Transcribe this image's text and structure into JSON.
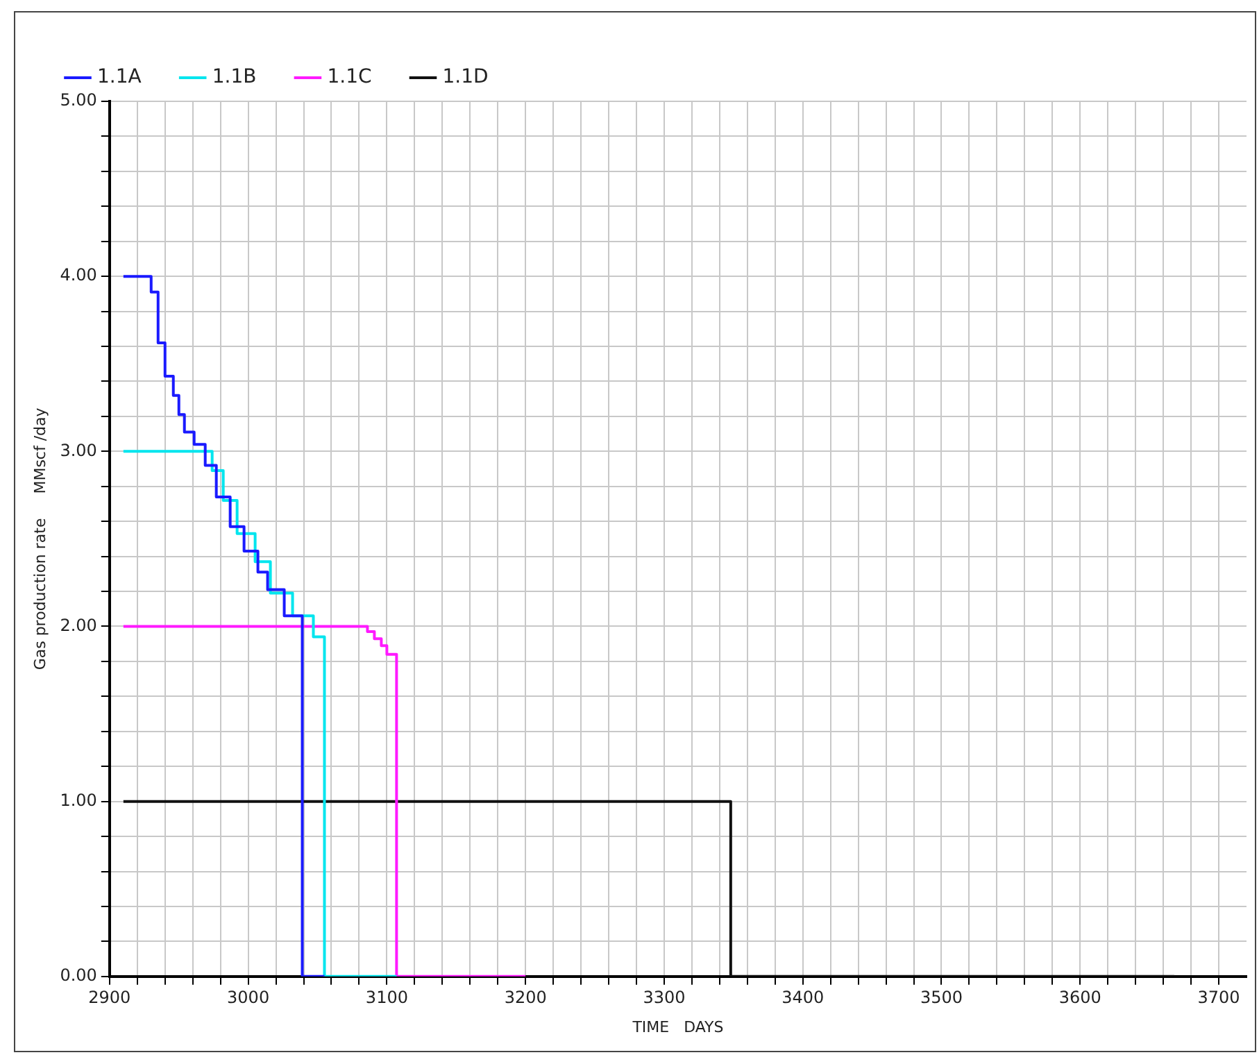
{
  "chart_data": {
    "type": "step",
    "xlabel": "TIME   DAYS",
    "ylabel": "Gas production rate     MMscf /day",
    "xlim": [
      2900,
      3720
    ],
    "xticks": [
      2900,
      {
        "value": 2920,
        "label": null
      },
      {
        "value": 2940,
        "label": null
      },
      {
        "value": 2960,
        "label": null
      },
      {
        "value": 2980,
        "label": null
      },
      3000,
      {
        "value": 3020,
        "label": null
      },
      {
        "value": 3040,
        "label": null
      },
      {
        "value": 3060,
        "label": null
      },
      {
        "value": 3080,
        "label": null
      },
      3100,
      {
        "value": 3120,
        "label": null
      },
      {
        "value": 3140,
        "label": null
      },
      {
        "value": 3160,
        "label": null
      },
      {
        "value": 3180,
        "label": null
      },
      3200,
      {
        "value": 3220,
        "label": null
      },
      {
        "value": 3240,
        "label": null
      },
      {
        "value": 3260,
        "label": null
      },
      {
        "value": 3280,
        "label": null
      },
      3300,
      {
        "value": 3320,
        "label": null
      },
      {
        "value": 3340,
        "label": null
      },
      {
        "value": 3360,
        "label": null
      },
      {
        "value": 3380,
        "label": null
      },
      3400,
      {
        "value": 3420,
        "label": null
      },
      {
        "value": 3440,
        "label": null
      },
      {
        "value": 3460,
        "label": null
      },
      {
        "value": 3480,
        "label": null
      },
      3500,
      {
        "value": 3520,
        "label": null
      },
      {
        "value": 3540,
        "label": null
      },
      {
        "value": 3560,
        "label": null
      },
      {
        "value": 3580,
        "label": null
      },
      3600,
      {
        "value": 3620,
        "label": null
      },
      {
        "value": 3640,
        "label": null
      },
      {
        "value": 3660,
        "label": null
      },
      {
        "value": 3680,
        "label": null
      },
      3700
    ],
    "ylim": [
      0,
      5
    ],
    "yticks": [
      {
        "value": 0,
        "label": "0.00"
      },
      {
        "value": 0.2,
        "label": null
      },
      {
        "value": 0.4,
        "label": null
      },
      {
        "value": 0.6,
        "label": null
      },
      {
        "value": 0.8,
        "label": null
      },
      {
        "value": 1,
        "label": "1.00"
      },
      {
        "value": 1.2,
        "label": null
      },
      {
        "value": 1.4,
        "label": null
      },
      {
        "value": 1.6,
        "label": null
      },
      {
        "value": 1.8,
        "label": null
      },
      {
        "value": 2,
        "label": "2.00"
      },
      {
        "value": 2.2,
        "label": null
      },
      {
        "value": 2.4,
        "label": null
      },
      {
        "value": 2.6,
        "label": null
      },
      {
        "value": 2.8,
        "label": null
      },
      {
        "value": 3,
        "label": "3.00"
      },
      {
        "value": 3.2,
        "label": null
      },
      {
        "value": 3.4,
        "label": null
      },
      {
        "value": 3.6,
        "label": null
      },
      {
        "value": 3.8,
        "label": null
      },
      {
        "value": 4,
        "label": "4.00"
      },
      {
        "value": 4.2,
        "label": null
      },
      {
        "value": 4.4,
        "label": null
      },
      {
        "value": 4.6,
        "label": null
      },
      {
        "value": 4.8,
        "label": null
      },
      {
        "value": 5,
        "label": "5.00"
      }
    ],
    "grid": true,
    "legend": "top left",
    "marker": "none",
    "line_style": "solid",
    "series": [
      {
        "name": "1.1A",
        "color": "#1a1aff",
        "x": [
          2910,
          2930,
          2935,
          2940,
          2946,
          2950,
          2954,
          2961,
          2969,
          2977,
          2987,
          2997,
          3007,
          3014,
          3026,
          3039,
          3055
        ],
        "values": [
          4.0,
          3.91,
          3.62,
          3.43,
          3.32,
          3.21,
          3.11,
          3.04,
          2.92,
          2.74,
          2.57,
          2.43,
          2.31,
          2.21,
          2.06,
          0,
          0
        ]
      },
      {
        "name": "1.1B",
        "color": "#00e5ee",
        "x": [
          2910,
          2974,
          2982,
          2992,
          3005,
          3016,
          3032,
          3047,
          3055,
          3107
        ],
        "values": [
          3.0,
          2.89,
          2.72,
          2.53,
          2.37,
          2.19,
          2.06,
          1.94,
          0,
          0
        ]
      },
      {
        "name": "1.1C",
        "color": "#ff1aff",
        "x": [
          2910,
          3086,
          3091,
          3096,
          3100,
          3107,
          3200
        ],
        "values": [
          2.0,
          1.97,
          1.93,
          1.89,
          1.84,
          0,
          0
        ]
      },
      {
        "name": "1.1D",
        "color": "#111111",
        "x": [
          2910,
          3348,
          3668
        ],
        "values": [
          1.0,
          0,
          0
        ]
      }
    ]
  }
}
